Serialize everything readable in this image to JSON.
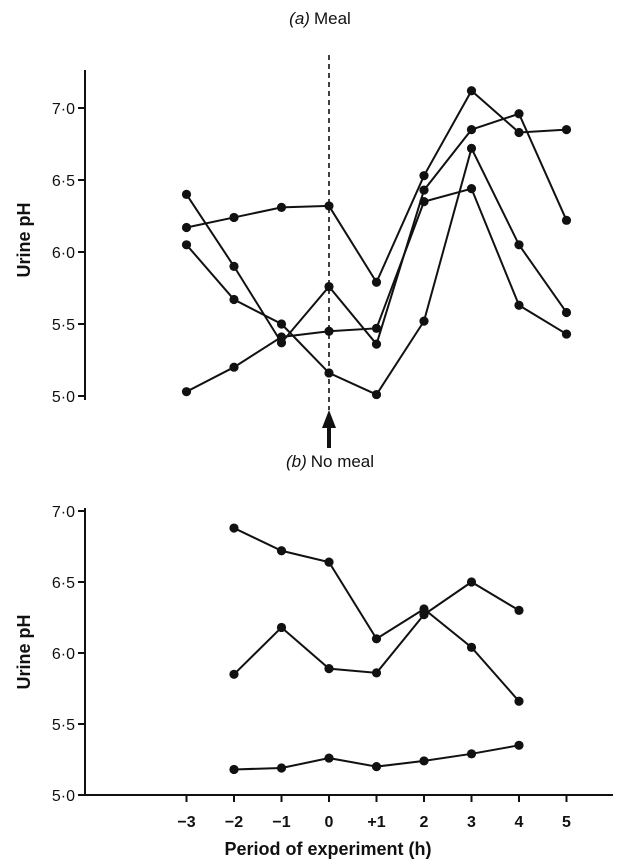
{
  "chart_data": [
    {
      "type": "line",
      "title_prefix": "(a)",
      "title": "Meal",
      "xlabel": "",
      "ylabel": "Urine pH",
      "ylim": [
        5.0,
        7.0
      ],
      "yticks": [
        7.0,
        6.5,
        6.0,
        5.5,
        5.0
      ],
      "ytick_labels": [
        "7·0",
        "6·5",
        "6·0",
        "5·5",
        "5·0"
      ],
      "meal_time_marker": 0,
      "series": [
        {
          "x": [
            -3,
            -2,
            -1,
            0,
            1,
            2,
            3,
            4,
            5
          ],
          "values": [
            6.17,
            6.24,
            6.31,
            6.32,
            5.79,
            6.53,
            7.12,
            6.83,
            6.85
          ]
        },
        {
          "x": [
            -3,
            -2,
            -1,
            0,
            1,
            2,
            3,
            4,
            5
          ],
          "values": [
            6.4,
            5.9,
            5.37,
            5.76,
            5.36,
            6.43,
            6.85,
            6.96,
            6.22
          ]
        },
        {
          "x": [
            -3,
            -2,
            -1,
            0,
            1,
            2,
            3,
            4,
            5
          ],
          "values": [
            6.05,
            5.67,
            5.5,
            5.16,
            5.01,
            5.52,
            6.72,
            6.05,
            5.58
          ]
        },
        {
          "x": [
            -3,
            -2,
            -1,
            0,
            1,
            2,
            3,
            4,
            5
          ],
          "values": [
            5.03,
            5.2,
            5.41,
            5.45,
            5.47,
            6.35,
            6.44,
            5.63,
            5.43
          ]
        }
      ]
    },
    {
      "type": "line",
      "title_prefix": "(b)",
      "title": "No meal",
      "xlabel": "Period of experiment (h)",
      "ylabel": "Urine pH",
      "ylim": [
        5.0,
        7.0
      ],
      "xlim": [
        -3.6,
        5.2
      ],
      "xticks": [
        -3,
        -2,
        -1,
        0,
        1,
        2,
        3,
        4,
        5
      ],
      "xtick_labels": [
        "−3",
        "−2",
        "−1",
        "0",
        "+1",
        "2",
        "3",
        "4",
        "5"
      ],
      "yticks": [
        7.0,
        6.5,
        6.0,
        5.5,
        5.0
      ],
      "ytick_labels": [
        "7·0",
        "6·5",
        "6·0",
        "5·5",
        "5·0"
      ],
      "series": [
        {
          "x": [
            -2,
            -1,
            0,
            1,
            2,
            3,
            4
          ],
          "values": [
            6.88,
            6.72,
            6.64,
            6.1,
            6.31,
            6.04,
            5.66
          ]
        },
        {
          "x": [
            -2,
            -1,
            0,
            1,
            2,
            3,
            4
          ],
          "values": [
            5.85,
            6.18,
            5.89,
            5.86,
            6.27,
            6.5,
            6.3
          ]
        },
        {
          "x": [
            -2,
            -1,
            0,
            1,
            2,
            3,
            4
          ],
          "values": [
            5.18,
            5.19,
            5.26,
            5.2,
            5.24,
            5.29,
            5.35
          ]
        }
      ]
    }
  ]
}
